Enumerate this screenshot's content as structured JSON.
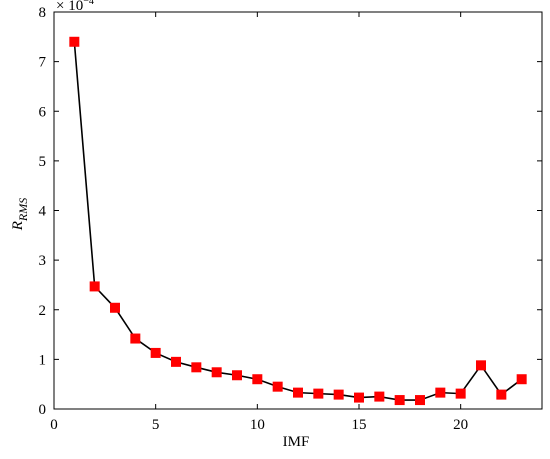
{
  "chart_data": {
    "type": "line",
    "xlabel": "IMF",
    "ylabel": "R",
    "ylabel_sub": "RMS",
    "multiplier_base": "× 10",
    "multiplier_exponent": "−4",
    "series": [
      {
        "color": "#000000",
        "marker_color": "#ff0000",
        "x": [
          1,
          2,
          3,
          4,
          5,
          6,
          7,
          8,
          9,
          10,
          11,
          12,
          13,
          14,
          15,
          16,
          17,
          18,
          19,
          20,
          21,
          22,
          23
        ],
        "values": [
          7.4,
          2.47,
          2.04,
          1.42,
          1.13,
          0.95,
          0.84,
          0.74,
          0.68,
          0.6,
          0.45,
          0.33,
          0.31,
          0.29,
          0.23,
          0.25,
          0.18,
          0.18,
          0.33,
          0.31,
          0.88,
          0.29,
          0.6
        ]
      }
    ],
    "xlim": [
      0,
      24
    ],
    "xticks": [
      0,
      5,
      10,
      15,
      20
    ],
    "ylim": [
      0,
      8
    ],
    "yticks": [
      0,
      1,
      2,
      3,
      4,
      5,
      6,
      7,
      8
    ]
  }
}
